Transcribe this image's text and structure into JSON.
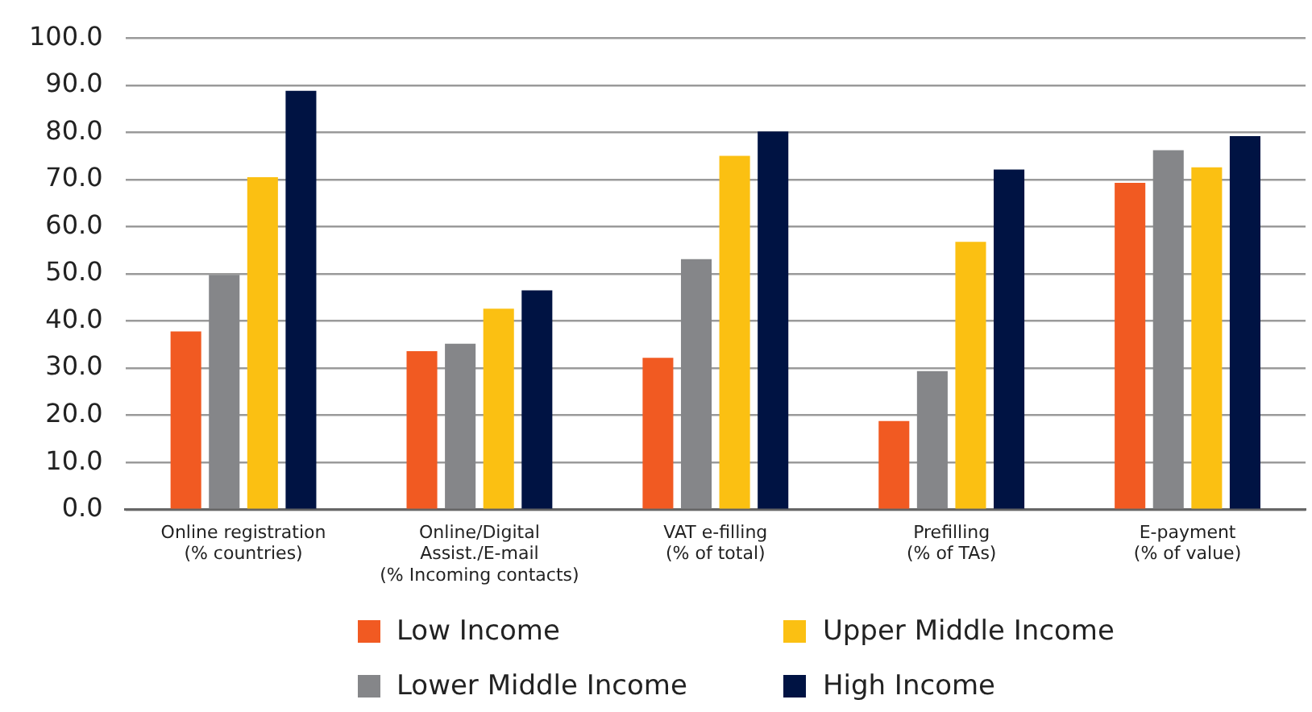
{
  "chart_data": {
    "type": "bar",
    "categories": [
      "Online registration\n(% countries)",
      "Online/Digital\nAssist./E-mail\n(% Incoming contacts)",
      "VAT e-filling\n(% of total)",
      "Prefilling\n(% of TAs)",
      "E-payment\n(% of value)"
    ],
    "series": [
      {
        "name": "Low Income",
        "color": "#f15a22",
        "values": [
          37.8,
          33.6,
          32.2,
          18.8,
          69.3
        ]
      },
      {
        "name": "Lower Middle Income",
        "color": "#858689",
        "values": [
          49.8,
          35.2,
          53.1,
          29.4,
          76.2
        ]
      },
      {
        "name": "Upper Middle Income",
        "color": "#fbc012",
        "values": [
          70.5,
          42.6,
          75.0,
          56.8,
          72.6
        ]
      },
      {
        "name": "High Income",
        "color": "#001343",
        "values": [
          88.8,
          46.5,
          80.2,
          72.1,
          79.2
        ]
      }
    ],
    "ylim": [
      0,
      100
    ],
    "yticks": [
      {
        "value": 0,
        "label": "0.0"
      },
      {
        "value": 10,
        "label": "10.0"
      },
      {
        "value": 20,
        "label": "20.0"
      },
      {
        "value": 30,
        "label": "30.0"
      },
      {
        "value": 40,
        "label": "40.0"
      },
      {
        "value": 50,
        "label": "50.0"
      },
      {
        "value": 60,
        "label": "60.0"
      },
      {
        "value": 70,
        "label": "70.0"
      },
      {
        "value": 80,
        "label": "80.0"
      },
      {
        "value": 90,
        "label": "90.0"
      },
      {
        "value": 100,
        "label": "100.0"
      }
    ],
    "grid": "y",
    "legend": "bottom"
  }
}
